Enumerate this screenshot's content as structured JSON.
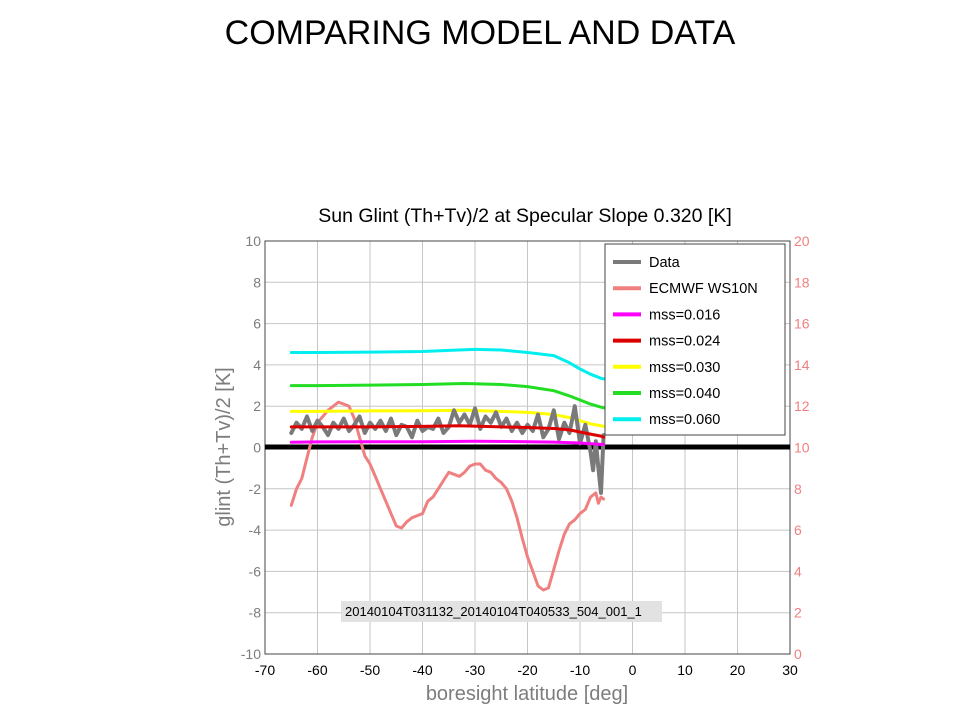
{
  "slide_title": "COMPARING MODEL AND DATA",
  "chart_data": {
    "type": "line",
    "title": "Sun Glint (Th+Tv)/2 at Specular Slope 0.320 [K]",
    "xlabel": "boresight latitude [deg]",
    "ylabel": "glint (Th+Tv)/2 [K]",
    "xlim": [
      -70,
      30
    ],
    "ylim": [
      -10,
      10
    ],
    "y2lim": [
      0,
      20
    ],
    "xticks": [
      -70,
      -60,
      -50,
      -40,
      -30,
      -20,
      -10,
      0,
      10,
      20,
      30
    ],
    "yticks": [
      -10,
      -8,
      -6,
      -4,
      -2,
      0,
      2,
      4,
      6,
      8,
      10
    ],
    "y2ticks": [
      0,
      2,
      4,
      6,
      8,
      10,
      12,
      14,
      16,
      18,
      20
    ],
    "grid": true,
    "legend_position": "top-right",
    "annotation": "20140104T031132_20140104T040533_504_001_1",
    "series": [
      {
        "name": "Data",
        "color": "#7a7a7a",
        "axis": "left",
        "width": 4,
        "x": [
          -65,
          -64,
          -63,
          -62,
          -61,
          -60,
          -59,
          -58,
          -57,
          -56,
          -55,
          -54,
          -53,
          -52,
          -51,
          -50,
          -49,
          -48,
          -47,
          -46,
          -45,
          -44,
          -43,
          -42,
          -41,
          -40,
          -39,
          -38,
          -37,
          -36,
          -35,
          -34,
          -33,
          -32,
          -31,
          -30,
          -29,
          -28,
          -27,
          -26,
          -25,
          -24,
          -23,
          -22,
          -21,
          -20,
          -19,
          -18,
          -17,
          -16,
          -15,
          -14,
          -13,
          -12,
          -11,
          -10,
          -9,
          -8,
          -7.5,
          -7,
          -6.5,
          -6,
          -5.5
        ],
        "y": [
          0.7,
          1.2,
          0.9,
          1.5,
          0.8,
          1.3,
          1.0,
          0.6,
          1.2,
          0.9,
          1.4,
          0.8,
          1.1,
          1.5,
          0.7,
          1.2,
          0.9,
          1.3,
          0.8,
          1.4,
          0.6,
          1.1,
          1.0,
          0.5,
          1.3,
          0.8,
          1.0,
          0.9,
          1.4,
          0.7,
          1.0,
          1.8,
          1.2,
          1.6,
          1.1,
          1.9,
          0.9,
          1.5,
          1.2,
          1.7,
          1.0,
          1.4,
          0.8,
          1.2,
          0.7,
          1.1,
          0.8,
          1.6,
          0.5,
          0.9,
          1.8,
          0.4,
          1.2,
          0.7,
          2.0,
          0.2,
          1.1,
          -0.2,
          -1.1,
          0.3,
          -1.0,
          -2.2,
          0.6
        ]
      },
      {
        "name": "ECMWF WS10N",
        "color": "#f08080",
        "axis": "right",
        "width": 3,
        "x": [
          -65,
          -64,
          -63,
          -62,
          -61,
          -60,
          -59,
          -58,
          -57,
          -56,
          -55,
          -54,
          -53,
          -52,
          -51,
          -50,
          -49,
          -48,
          -47,
          -46,
          -45,
          -44,
          -43,
          -42,
          -41,
          -40,
          -39,
          -38,
          -37,
          -36,
          -35,
          -34,
          -33,
          -32,
          -31,
          -30,
          -29,
          -28,
          -27,
          -26,
          -25,
          -24,
          -23,
          -22,
          -21,
          -20,
          -19,
          -18,
          -17,
          -16,
          -15,
          -14,
          -13,
          -12,
          -11,
          -10,
          -9,
          -8,
          -7,
          -6.5,
          -6,
          -5.5
        ],
        "y": [
          7.2,
          8.0,
          8.5,
          9.5,
          10.5,
          11.2,
          11.5,
          11.8,
          12.0,
          12.2,
          12.1,
          12.0,
          11.4,
          10.5,
          9.6,
          9.2,
          8.6,
          8.0,
          7.4,
          6.8,
          6.2,
          6.1,
          6.4,
          6.6,
          6.7,
          6.8,
          7.4,
          7.6,
          8.0,
          8.4,
          8.8,
          8.7,
          8.6,
          8.8,
          9.1,
          9.2,
          9.2,
          8.9,
          8.8,
          8.5,
          8.3,
          8.0,
          7.4,
          6.6,
          5.6,
          4.7,
          4.0,
          3.3,
          3.1,
          3.2,
          4.1,
          5.0,
          5.8,
          6.3,
          6.5,
          6.8,
          7.0,
          7.6,
          7.8,
          7.3,
          7.6,
          7.5
        ]
      },
      {
        "name": "mss=0.016",
        "color": "#ff00ff",
        "axis": "left",
        "width": 3,
        "x": [
          -65,
          -60,
          -50,
          -40,
          -30,
          -20,
          -15,
          -10,
          -8,
          -6,
          -5.5
        ],
        "y": [
          0.25,
          0.27,
          0.28,
          0.28,
          0.3,
          0.28,
          0.26,
          0.22,
          0.18,
          0.15,
          0.15
        ]
      },
      {
        "name": "mss=0.024",
        "color": "#dd0000",
        "axis": "left",
        "width": 3,
        "x": [
          -65,
          -60,
          -50,
          -40,
          -33,
          -25,
          -20,
          -15,
          -12,
          -10,
          -8,
          -6,
          -5.5
        ],
        "y": [
          1.0,
          1.0,
          1.0,
          1.02,
          1.05,
          1.0,
          0.97,
          0.92,
          0.85,
          0.75,
          0.65,
          0.55,
          0.5
        ]
      },
      {
        "name": "mss=0.030",
        "color": "#ffff00",
        "axis": "left",
        "width": 3,
        "x": [
          -65,
          -60,
          -50,
          -40,
          -32,
          -25,
          -20,
          -15,
          -12,
          -10,
          -8,
          -6,
          -5
        ],
        "y": [
          1.75,
          1.75,
          1.77,
          1.78,
          1.8,
          1.75,
          1.7,
          1.6,
          1.45,
          1.3,
          1.15,
          1.05,
          1.0
        ]
      },
      {
        "name": "mss=0.040",
        "color": "#22dd22",
        "axis": "left",
        "width": 3,
        "x": [
          -65,
          -60,
          -50,
          -40,
          -32,
          -25,
          -20,
          -15,
          -12,
          -10,
          -8,
          -6,
          -5
        ],
        "y": [
          3.0,
          3.0,
          3.02,
          3.05,
          3.1,
          3.05,
          2.95,
          2.75,
          2.5,
          2.3,
          2.1,
          1.95,
          1.9
        ]
      },
      {
        "name": "mss=0.060",
        "color": "#00eeee",
        "axis": "left",
        "width": 3,
        "x": [
          -65,
          -60,
          -50,
          -40,
          -35,
          -30,
          -25,
          -20,
          -15,
          -12,
          -10,
          -8,
          -6,
          -5
        ],
        "y": [
          4.6,
          4.6,
          4.62,
          4.65,
          4.7,
          4.75,
          4.72,
          4.6,
          4.45,
          4.1,
          3.8,
          3.55,
          3.35,
          3.3
        ]
      }
    ]
  }
}
